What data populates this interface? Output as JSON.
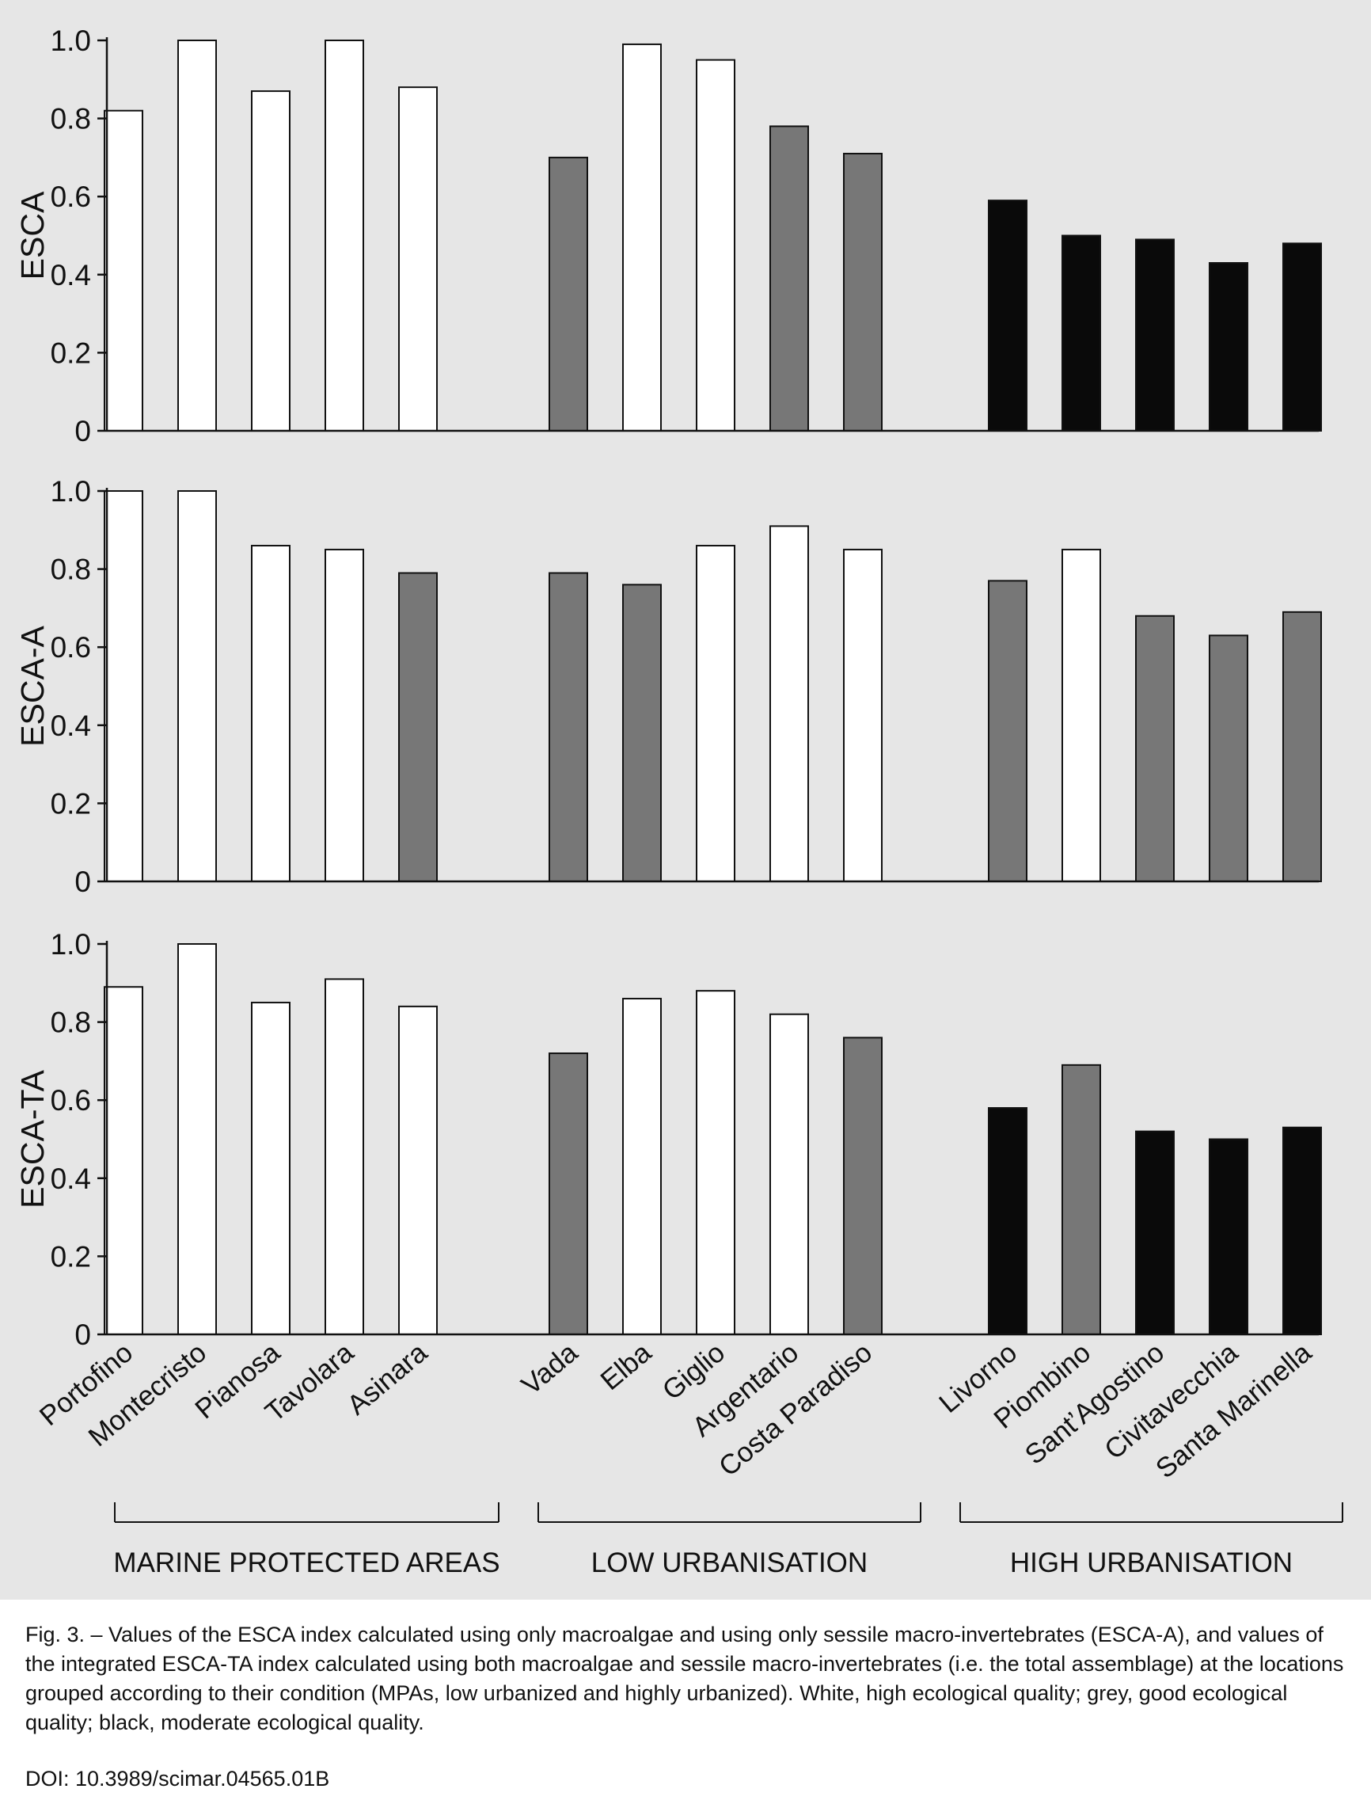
{
  "chart_data": {
    "type": "bar",
    "categories": [
      "Portofino",
      "Montecristo",
      "Pianosa",
      "Tavolara",
      "Asinara",
      "Vada",
      "Elba",
      "Giglio",
      "Argentario",
      "Costa Paradiso",
      "Livorno",
      "Piombino",
      "Sant’Agostino",
      "Civitavecchia",
      "Santa Marinella"
    ],
    "groups": [
      {
        "label": "MARINE PROTECTED AREAS",
        "count": 5
      },
      {
        "label": "LOW URBANISATION",
        "count": 5
      },
      {
        "label": "HIGH URBANISATION",
        "count": 5
      }
    ],
    "yticks": [
      "0",
      "0.2",
      "0.4",
      "0.6",
      "0.8",
      "1.0"
    ],
    "ylim": [
      0,
      1
    ],
    "colors": {
      "white": "#ffffff",
      "grey": "#777777",
      "black": "#0a0a0a",
      "outline": "#111111"
    },
    "panels": [
      {
        "ylabel": "ESCA",
        "values": [
          0.82,
          1.0,
          0.87,
          1.0,
          0.88,
          0.7,
          0.99,
          0.95,
          0.78,
          0.71,
          0.59,
          0.5,
          0.49,
          0.43,
          0.48
        ],
        "quality": [
          "white",
          "white",
          "white",
          "white",
          "white",
          "grey",
          "white",
          "white",
          "grey",
          "grey",
          "black",
          "black",
          "black",
          "black",
          "black"
        ]
      },
      {
        "ylabel": "ESCA-A",
        "values": [
          1.0,
          1.0,
          0.86,
          0.85,
          0.79,
          0.79,
          0.76,
          0.86,
          0.91,
          0.85,
          0.77,
          0.85,
          0.68,
          0.63,
          0.69
        ],
        "quality": [
          "white",
          "white",
          "white",
          "white",
          "grey",
          "grey",
          "grey",
          "white",
          "white",
          "white",
          "grey",
          "white",
          "grey",
          "grey",
          "grey"
        ]
      },
      {
        "ylabel": "ESCA-TA",
        "values": [
          0.89,
          1.0,
          0.85,
          0.91,
          0.84,
          0.72,
          0.86,
          0.88,
          0.82,
          0.76,
          0.58,
          0.69,
          0.52,
          0.5,
          0.53
        ],
        "quality": [
          "white",
          "white",
          "white",
          "white",
          "white",
          "grey",
          "white",
          "white",
          "white",
          "grey",
          "black",
          "grey",
          "black",
          "black",
          "black"
        ]
      }
    ]
  },
  "caption": "Fig. 3. – Values of the ESCA index calculated using only macroalgae and using only sessile macro-invertebrates (ESCA-A), and values of the integrated ESCA-TA index calculated using both macroalgae and sessile macro-invertebrates (i.e. the total assemblage) at the locations grouped according to their condition (MPAs, low urbanized and highly urbanized). White, high ecological quality; grey, good ecological quality; black, moderate ecological quality.",
  "doi": "DOI: 10.3989/scimar.04565.01B"
}
